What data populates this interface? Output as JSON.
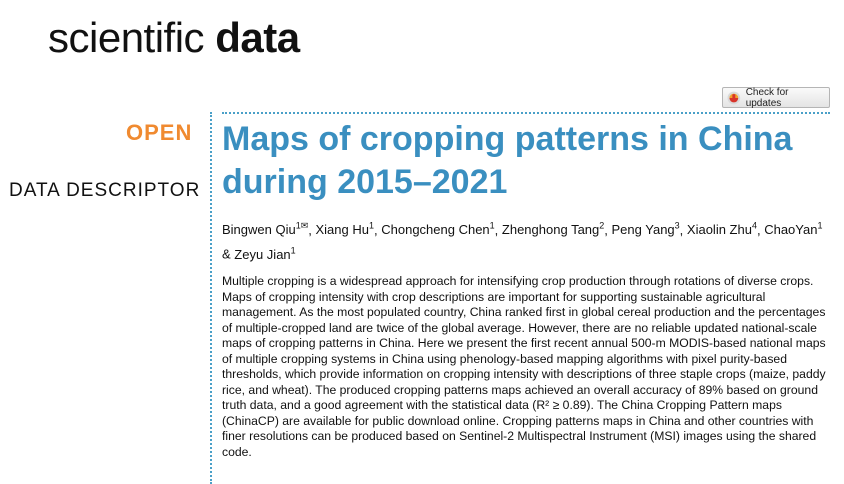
{
  "journal": {
    "name_light": "scientific",
    "name_bold": "data"
  },
  "toolbar": {
    "check_updates_label": "Check for updates",
    "icon": "check-for-updates-icon"
  },
  "labels": {
    "open": "OPEN",
    "type": "DATA DESCRIPTOR"
  },
  "article": {
    "title": "Maps of cropping patterns in China during 2015–2021",
    "authors": [
      {
        "name": "Bingwen Qiu",
        "sup": "1✉",
        "sep": ", "
      },
      {
        "name": "Xiang Hu",
        "sup": "1",
        "sep": ", "
      },
      {
        "name": "Chongcheng Chen",
        "sup": "1",
        "sep": ", "
      },
      {
        "name": "Zhenghong Tang",
        "sup": "2",
        "sep": ", "
      },
      {
        "name": "Peng Yang",
        "sup": "3",
        "sep": ", "
      },
      {
        "name": "Xiaolin Zhu",
        "sup": "4",
        "sep": ", "
      },
      {
        "name": "ChaoYan",
        "sup": "1",
        "sep": " & "
      },
      {
        "name": "Zeyu Jian",
        "sup": "1",
        "sep": ""
      }
    ],
    "abstract": "Multiple cropping is a widespread approach for intensifying crop production through rotations of diverse crops. Maps of cropping intensity with crop descriptions are important for supporting sustainable agricultural management. As the most populated country, China ranked first in global cereal production and the percentages of multiple-cropped land are twice of the global average. However, there are no reliable updated national-scale maps of cropping patterns in China. Here we present the first recent annual 500-m MODIS-based national maps of multiple cropping systems in China using phenology-based mapping algorithms with pixel purity-based thresholds, which provide information on cropping intensity with descriptions of three staple crops (maize, paddy rice, and wheat). The produced cropping patterns maps achieved an overall accuracy of 89% based on ground truth data, and a good agreement with the statistical data (R² ≥ 0.89). The China Cropping Pattern maps (ChinaCP) are available for public download online. Cropping patterns maps in China and other countries with finer resolutions can be produced based on Sentinel-2 Multispectral Instrument (MSI) images using the shared code."
  }
}
